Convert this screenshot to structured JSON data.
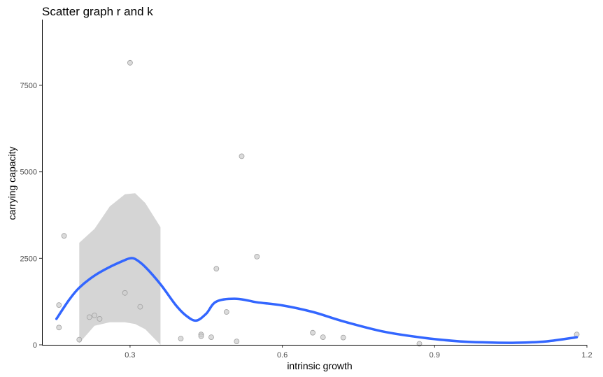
{
  "chart_data": {
    "type": "scatter",
    "title": "Scatter graph r and k",
    "xlabel": "intrinsic growth",
    "ylabel": "carrying capacity",
    "xlim": [
      0.1265,
      1.2
    ],
    "ylim": [
      0,
      9400
    ],
    "x_ticks": [
      0.3,
      0.6,
      0.9,
      1.2
    ],
    "x_tick_labels": [
      "0.3",
      "0.6",
      "0.9",
      "1.2"
    ],
    "y_ticks": [
      0,
      2500,
      5000,
      7500
    ],
    "y_tick_labels": [
      "0",
      "2500",
      "5000",
      "7500"
    ],
    "grid": false,
    "legend": "none",
    "colors": {
      "points": "#a0a0a0",
      "smooth": "#3366ff",
      "ribbon": "#d5d5d5"
    },
    "points": [
      {
        "x": 0.3,
        "y": 8150
      },
      {
        "x": 0.52,
        "y": 5450
      },
      {
        "x": 0.17,
        "y": 3150
      },
      {
        "x": 0.55,
        "y": 2550
      },
      {
        "x": 0.47,
        "y": 2200
      },
      {
        "x": 0.29,
        "y": 1500
      },
      {
        "x": 0.16,
        "y": 1150
      },
      {
        "x": 0.32,
        "y": 1100
      },
      {
        "x": 0.49,
        "y": 950
      },
      {
        "x": 0.23,
        "y": 850
      },
      {
        "x": 0.22,
        "y": 800
      },
      {
        "x": 0.24,
        "y": 750
      },
      {
        "x": 0.16,
        "y": 500
      },
      {
        "x": 0.66,
        "y": 350
      },
      {
        "x": 0.44,
        "y": 300
      },
      {
        "x": 1.18,
        "y": 300
      },
      {
        "x": 0.44,
        "y": 250
      },
      {
        "x": 0.46,
        "y": 220
      },
      {
        "x": 0.68,
        "y": 220
      },
      {
        "x": 0.72,
        "y": 210
      },
      {
        "x": 0.4,
        "y": 180
      },
      {
        "x": 0.2,
        "y": 150
      },
      {
        "x": 0.51,
        "y": 100
      },
      {
        "x": 0.87,
        "y": 30
      }
    ],
    "smooth_line": {
      "x": [
        0.155,
        0.18,
        0.2,
        0.23,
        0.26,
        0.29,
        0.3,
        0.31,
        0.33,
        0.36,
        0.39,
        0.41,
        0.43,
        0.45,
        0.47,
        0.51,
        0.55,
        0.6,
        0.66,
        0.72,
        0.8,
        0.88,
        0.95,
        1.0,
        1.06,
        1.12,
        1.18
      ],
      "y": [
        750,
        1300,
        1650,
        2000,
        2250,
        2450,
        2500,
        2480,
        2250,
        1750,
        1150,
        850,
        700,
        900,
        1250,
        1330,
        1230,
        1140,
        950,
        680,
        380,
        200,
        100,
        70,
        60,
        100,
        220
      ]
    },
    "confidence_band": {
      "x": [
        0.2,
        0.23,
        0.26,
        0.29,
        0.31,
        0.33,
        0.36
      ],
      "upper": [
        2950,
        3350,
        4000,
        4350,
        4380,
        4100,
        3400
      ],
      "lower": [
        50,
        550,
        650,
        650,
        600,
        450,
        0
      ]
    }
  }
}
